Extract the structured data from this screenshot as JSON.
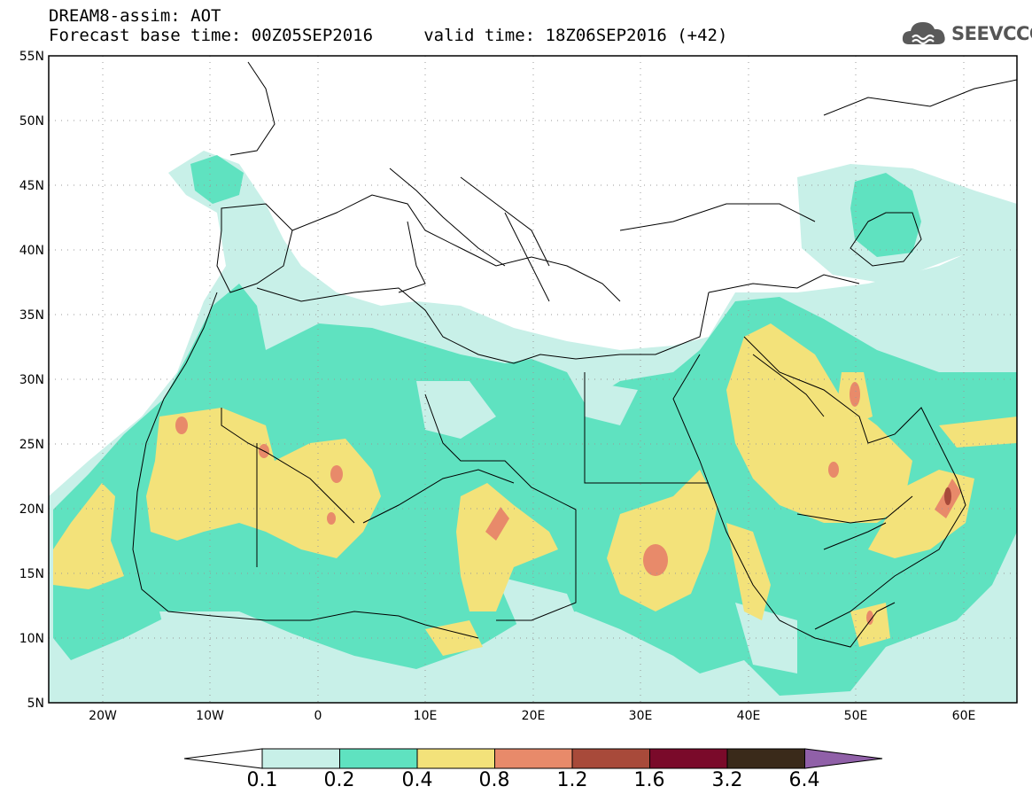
{
  "header": {
    "line1": "DREAM8-assim: AOT",
    "line2": "Forecast base time: 00Z05SEP2016     valid time: 18Z06SEP2016 (+42)"
  },
  "logo": {
    "text": "SEEVCCC",
    "icon": "cloud-icon"
  },
  "map": {
    "lat_labels": [
      "55N",
      "50N",
      "45N",
      "40N",
      "35N",
      "30N",
      "25N",
      "20N",
      "15N",
      "10N",
      "5N"
    ],
    "lon_labels": [
      "20W",
      "10W",
      "0",
      "10E",
      "20E",
      "30E",
      "40E",
      "50E",
      "60E"
    ],
    "grid": true
  },
  "colorbar": {
    "labels": [
      "0.1",
      "0.2",
      "0.4",
      "0.8",
      "1.2",
      "1.6",
      "3.2",
      "6.4"
    ],
    "colors": [
      "#ffffff",
      "#c8f0e8",
      "#5fe2c0",
      "#f3e27a",
      "#e88a6a",
      "#a84a3a",
      "#7a0a2a",
      "#3a2a1a",
      "#9060a8"
    ]
  }
}
